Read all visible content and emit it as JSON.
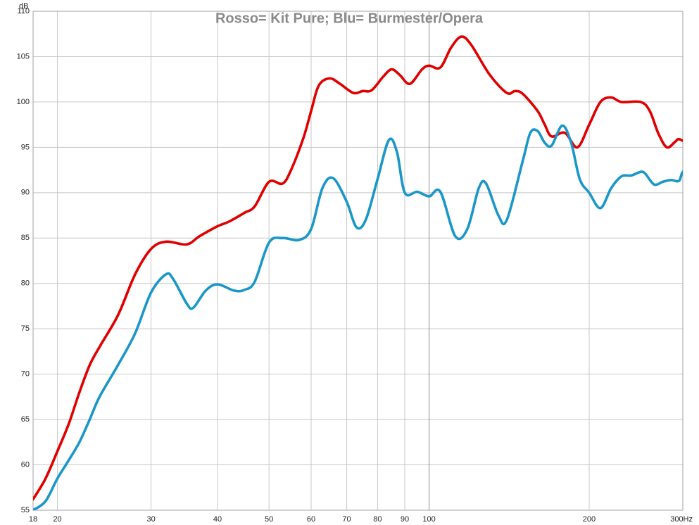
{
  "chart_data": {
    "type": "line",
    "title": "Rosso= Kit Pure; Blu= Burmester/Opera",
    "ylabel": "dB",
    "x_scale": "log",
    "xlim": [
      18,
      300
    ],
    "ylim": [
      55,
      110
    ],
    "grid": true,
    "x_ticks": [
      {
        "value": 18,
        "label": "18"
      },
      {
        "value": 20,
        "label": "20"
      },
      {
        "value": 30,
        "label": "30"
      },
      {
        "value": 40,
        "label": "40"
      },
      {
        "value": 50,
        "label": "50"
      },
      {
        "value": 60,
        "label": "60"
      },
      {
        "value": 70,
        "label": "70"
      },
      {
        "value": 80,
        "label": "80"
      },
      {
        "value": 90,
        "label": "90"
      },
      {
        "value": 100,
        "label": "100"
      },
      {
        "value": 200,
        "label": "200"
      },
      {
        "value": 300,
        "label": "300Hz"
      }
    ],
    "y_ticks": [
      55,
      60,
      65,
      70,
      75,
      80,
      85,
      90,
      95,
      100,
      105,
      110
    ],
    "series": [
      {
        "color": "#e00000",
        "points": [
          [
            18,
            56.2
          ],
          [
            19,
            58.5
          ],
          [
            20,
            61.5
          ],
          [
            21,
            64.5
          ],
          [
            22,
            68.0
          ],
          [
            23,
            71.0
          ],
          [
            24,
            73.0
          ],
          [
            26,
            76.5
          ],
          [
            28,
            81.0
          ],
          [
            30,
            83.8
          ],
          [
            32,
            84.6
          ],
          [
            35,
            84.3
          ],
          [
            37,
            85.2
          ],
          [
            40,
            86.3
          ],
          [
            42,
            86.8
          ],
          [
            45,
            87.8
          ],
          [
            47,
            88.5
          ],
          [
            50,
            91.2
          ],
          [
            53,
            91.0
          ],
          [
            55,
            92.5
          ],
          [
            58,
            96.0
          ],
          [
            60,
            99.0
          ],
          [
            62,
            101.8
          ],
          [
            65,
            102.6
          ],
          [
            68,
            102.0
          ],
          [
            72,
            101.0
          ],
          [
            75,
            101.2
          ],
          [
            78,
            101.3
          ],
          [
            82,
            102.8
          ],
          [
            85,
            103.6
          ],
          [
            88,
            103.0
          ],
          [
            92,
            102.0
          ],
          [
            97,
            103.6
          ],
          [
            100,
            104.0
          ],
          [
            105,
            103.8
          ],
          [
            110,
            106.0
          ],
          [
            115,
            107.2
          ],
          [
            120,
            106.3
          ],
          [
            130,
            103.0
          ],
          [
            140,
            101.0
          ],
          [
            145,
            101.2
          ],
          [
            150,
            100.9
          ],
          [
            160,
            99.0
          ],
          [
            165,
            97.5
          ],
          [
            170,
            96.2
          ],
          [
            180,
            96.6
          ],
          [
            190,
            95.0
          ],
          [
            200,
            97.5
          ],
          [
            210,
            100.0
          ],
          [
            220,
            100.5
          ],
          [
            230,
            100.0
          ],
          [
            250,
            100.0
          ],
          [
            260,
            99.0
          ],
          [
            270,
            96.5
          ],
          [
            280,
            95.0
          ],
          [
            290,
            95.6
          ],
          [
            295,
            95.9
          ],
          [
            305,
            95.4
          ],
          [
            315,
            94.4
          ]
        ]
      },
      {
        "color": "#1a97c8",
        "points": [
          [
            18,
            55.0
          ],
          [
            19,
            56.0
          ],
          [
            20,
            58.5
          ],
          [
            21,
            60.5
          ],
          [
            22,
            62.5
          ],
          [
            23,
            65.0
          ],
          [
            24,
            67.5
          ],
          [
            26,
            71.0
          ],
          [
            28,
            74.5
          ],
          [
            30,
            79.0
          ],
          [
            32,
            81.0
          ],
          [
            33,
            80.5
          ],
          [
            35,
            77.8
          ],
          [
            36,
            77.3
          ],
          [
            38,
            79.2
          ],
          [
            40,
            79.9
          ],
          [
            43,
            79.2
          ],
          [
            45,
            79.3
          ],
          [
            47,
            80.2
          ],
          [
            50,
            84.5
          ],
          [
            53,
            85.0
          ],
          [
            57,
            84.8
          ],
          [
            60,
            86.0
          ],
          [
            63,
            90.5
          ],
          [
            66,
            91.6
          ],
          [
            70,
            89.0
          ],
          [
            73,
            86.2
          ],
          [
            76,
            87.0
          ],
          [
            80,
            91.5
          ],
          [
            84,
            95.8
          ],
          [
            87,
            94.5
          ],
          [
            90,
            90.0
          ],
          [
            95,
            90.1
          ],
          [
            100,
            89.6
          ],
          [
            105,
            90.1
          ],
          [
            112,
            85.2
          ],
          [
            118,
            86.0
          ],
          [
            124,
            90.5
          ],
          [
            128,
            91.0
          ],
          [
            135,
            87.5
          ],
          [
            140,
            87.0
          ],
          [
            150,
            93.5
          ],
          [
            155,
            96.6
          ],
          [
            160,
            96.8
          ],
          [
            165,
            95.5
          ],
          [
            170,
            95.2
          ],
          [
            178,
            97.4
          ],
          [
            185,
            95.5
          ],
          [
            192,
            91.5
          ],
          [
            200,
            90.0
          ],
          [
            210,
            88.3
          ],
          [
            220,
            90.5
          ],
          [
            230,
            91.8
          ],
          [
            240,
            91.9
          ],
          [
            250,
            92.3
          ],
          [
            255,
            92.1
          ],
          [
            265,
            90.9
          ],
          [
            275,
            91.2
          ],
          [
            285,
            91.4
          ],
          [
            295,
            91.3
          ],
          [
            300,
            92.3
          ],
          [
            310,
            92.4
          ],
          [
            315,
            92.2
          ]
        ]
      }
    ]
  }
}
